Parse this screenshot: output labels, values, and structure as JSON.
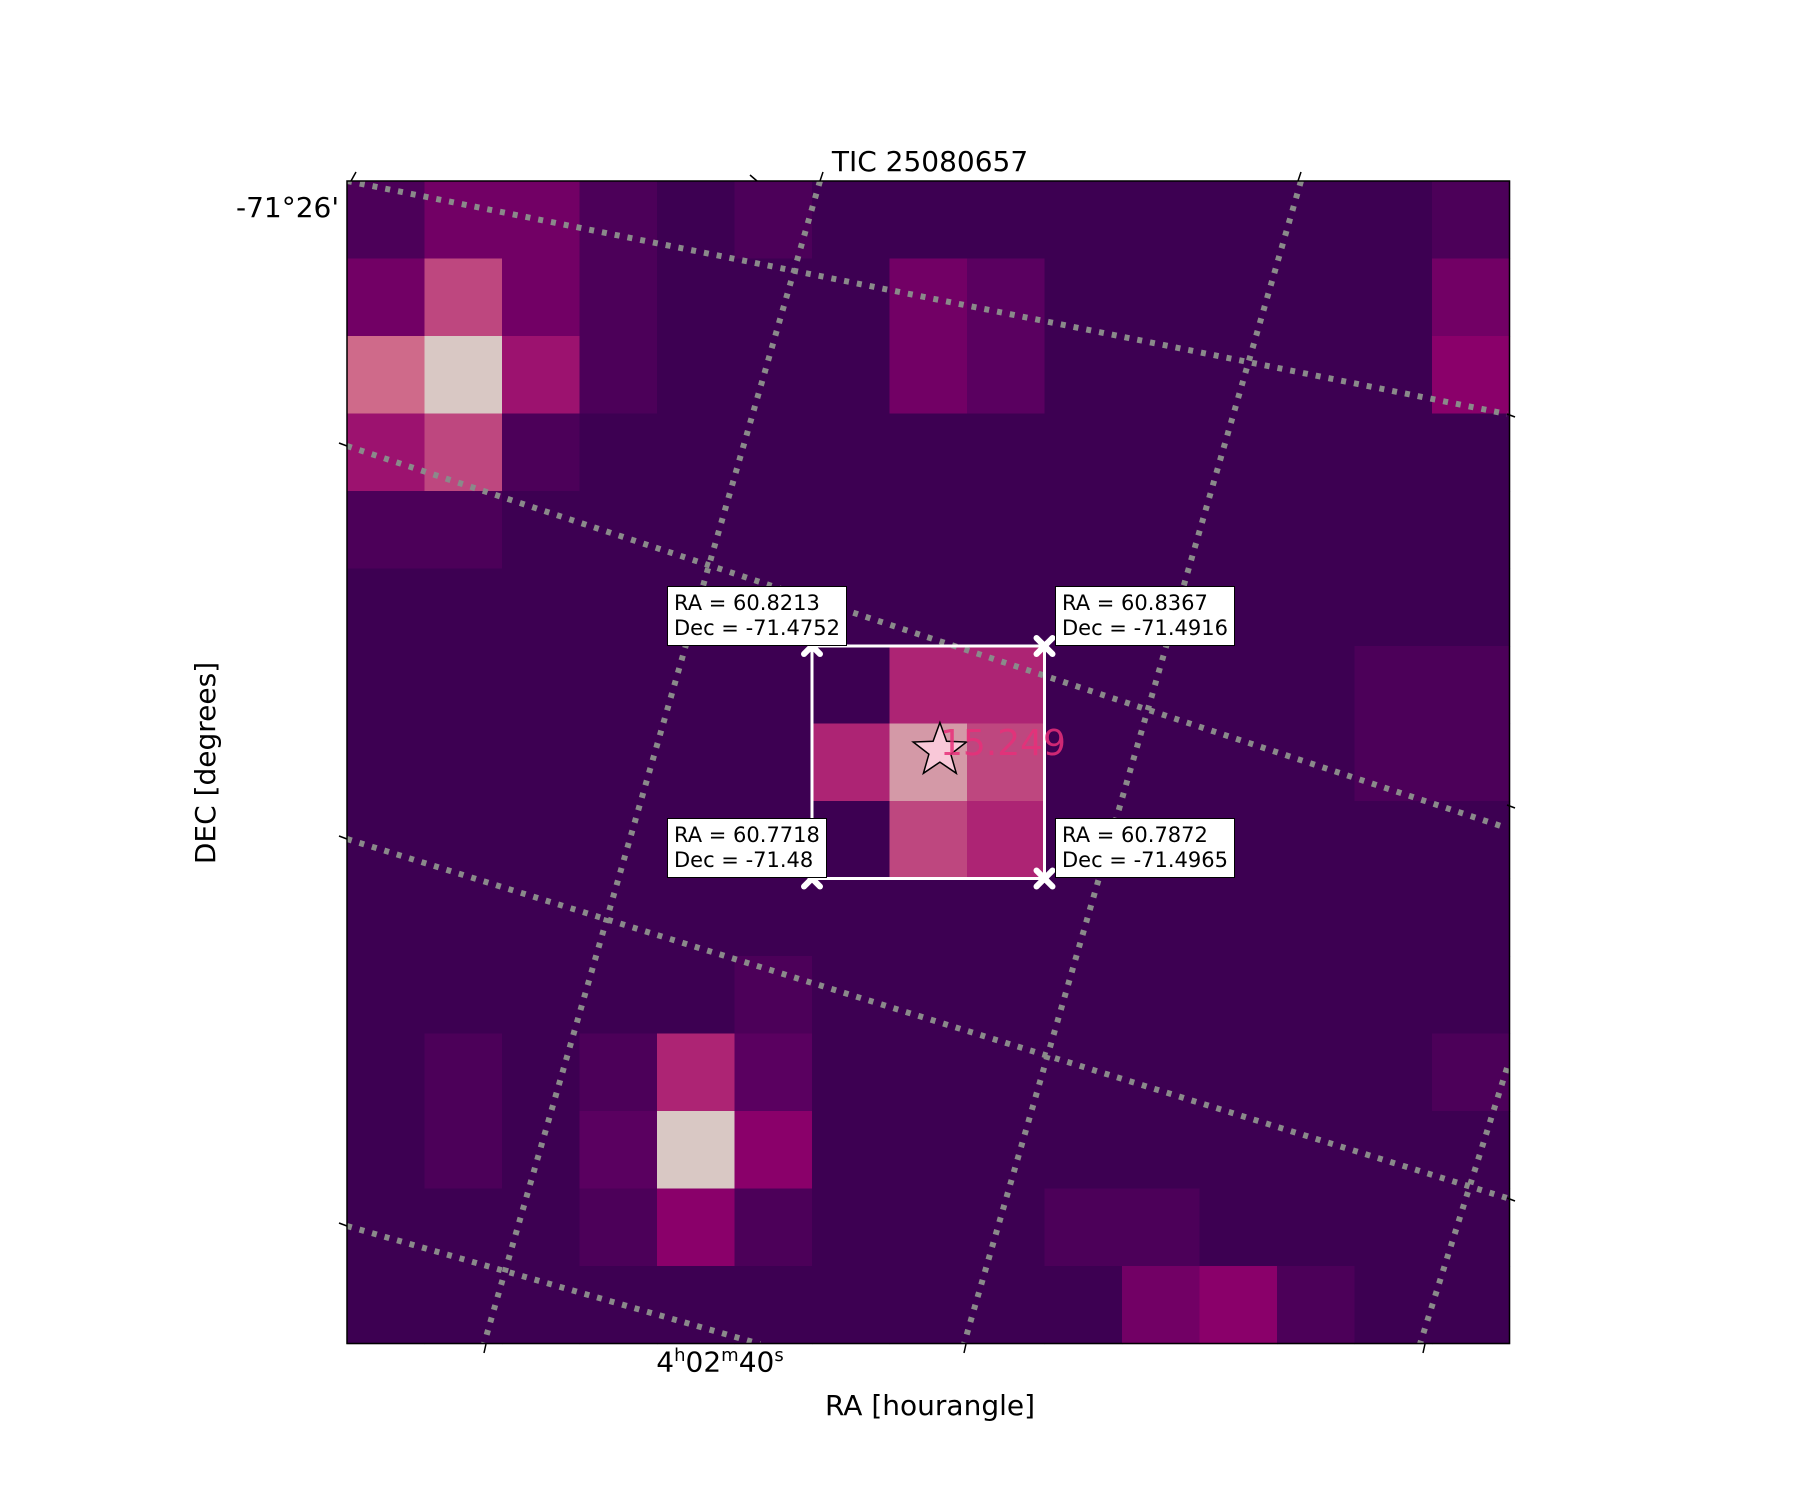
{
  "chart_data": {
    "type": "heatmap",
    "title": "TIC 25080657",
    "xlabel": "RA [hourangle]",
    "ylabel": "DEC [degrees]",
    "x_tick_labels": [
      {
        "h": "4",
        "m": "02",
        "s": "40"
      }
    ],
    "y_tick_labels": [
      "-71°26'"
    ],
    "grid": true,
    "colormap": [
      "#3d0052",
      "#5a0060",
      "#8a006a",
      "#ad2474",
      "#cf6a8a",
      "#d9c8c4"
    ],
    "grid_color": "#8a8a8a",
    "rows": 15,
    "cols": 15,
    "pixel_values": [
      [
        1,
        3,
        3,
        1,
        0,
        1,
        0,
        0,
        0,
        0,
        0,
        0,
        0,
        0,
        1
      ],
      [
        3,
        7,
        3,
        1,
        0,
        0,
        0,
        3,
        2,
        0,
        0,
        0,
        0,
        0,
        3
      ],
      [
        8,
        10,
        5,
        1,
        0,
        0,
        0,
        3,
        2,
        0,
        0,
        0,
        0,
        0,
        4
      ],
      [
        5,
        7,
        1,
        0,
        0,
        0,
        0,
        0,
        0,
        0,
        0,
        0,
        0,
        0,
        0
      ],
      [
        1,
        1,
        0,
        0,
        0,
        0,
        0,
        0,
        0,
        0,
        0,
        0,
        0,
        0,
        0
      ],
      [
        0,
        0,
        0,
        0,
        0,
        0,
        0,
        0,
        0,
        0,
        0,
        0,
        0,
        0,
        0
      ],
      [
        0,
        0,
        0,
        0,
        0,
        0,
        0,
        6,
        6,
        0,
        0,
        0,
        0,
        1,
        1
      ],
      [
        0,
        0,
        0,
        0,
        0,
        0,
        6,
        9,
        7,
        0,
        0,
        0,
        0,
        1,
        1
      ],
      [
        0,
        0,
        0,
        0,
        0,
        0,
        0,
        7,
        6,
        0,
        0,
        0,
        0,
        0,
        0
      ],
      [
        0,
        0,
        0,
        0,
        0,
        0,
        0,
        0,
        0,
        0,
        0,
        0,
        0,
        0,
        0
      ],
      [
        0,
        0,
        0,
        0,
        0,
        1,
        0,
        0,
        0,
        0,
        0,
        0,
        0,
        0,
        0
      ],
      [
        0,
        1,
        0,
        1,
        6,
        2,
        0,
        0,
        0,
        0,
        0,
        0,
        0,
        0,
        1
      ],
      [
        0,
        1,
        0,
        2,
        10,
        4,
        0,
        0,
        0,
        0,
        0,
        0,
        0,
        0,
        0
      ],
      [
        0,
        0,
        0,
        1,
        4,
        1,
        0,
        0,
        0,
        1,
        1,
        0,
        0,
        0,
        0
      ],
      [
        0,
        0,
        0,
        0,
        0,
        0,
        0,
        0,
        0,
        0,
        3,
        4,
        1,
        0,
        0
      ]
    ],
    "aperture": {
      "col_range": [
        6,
        9
      ],
      "row_range": [
        6,
        9
      ],
      "color": "#ffffff",
      "corners": [
        {
          "ra": 60.8213,
          "dec": -71.4752,
          "label": [
            "RA = 60.8213",
            "Dec = -71.4752"
          ],
          "corner": "top-left"
        },
        {
          "ra": 60.8367,
          "dec": -71.4916,
          "label": [
            "RA = 60.8367",
            "Dec = -71.4916"
          ],
          "corner": "top-right"
        },
        {
          "ra": 60.7718,
          "dec": -71.48,
          "label": [
            "RA = 60.7718",
            "Dec = -71.48"
          ],
          "corner": "bottom-left"
        },
        {
          "ra": 60.7872,
          "dec": -71.4965,
          "label": [
            "RA = 60.7872",
            "Dec = -71.4965"
          ],
          "corner": "bottom-right"
        }
      ]
    },
    "target": {
      "col": 7.65,
      "row": 7.35,
      "marker": "star",
      "magnitude": "15.249",
      "fill": "#f9c8d8",
      "label_color": "#e8307a"
    }
  }
}
